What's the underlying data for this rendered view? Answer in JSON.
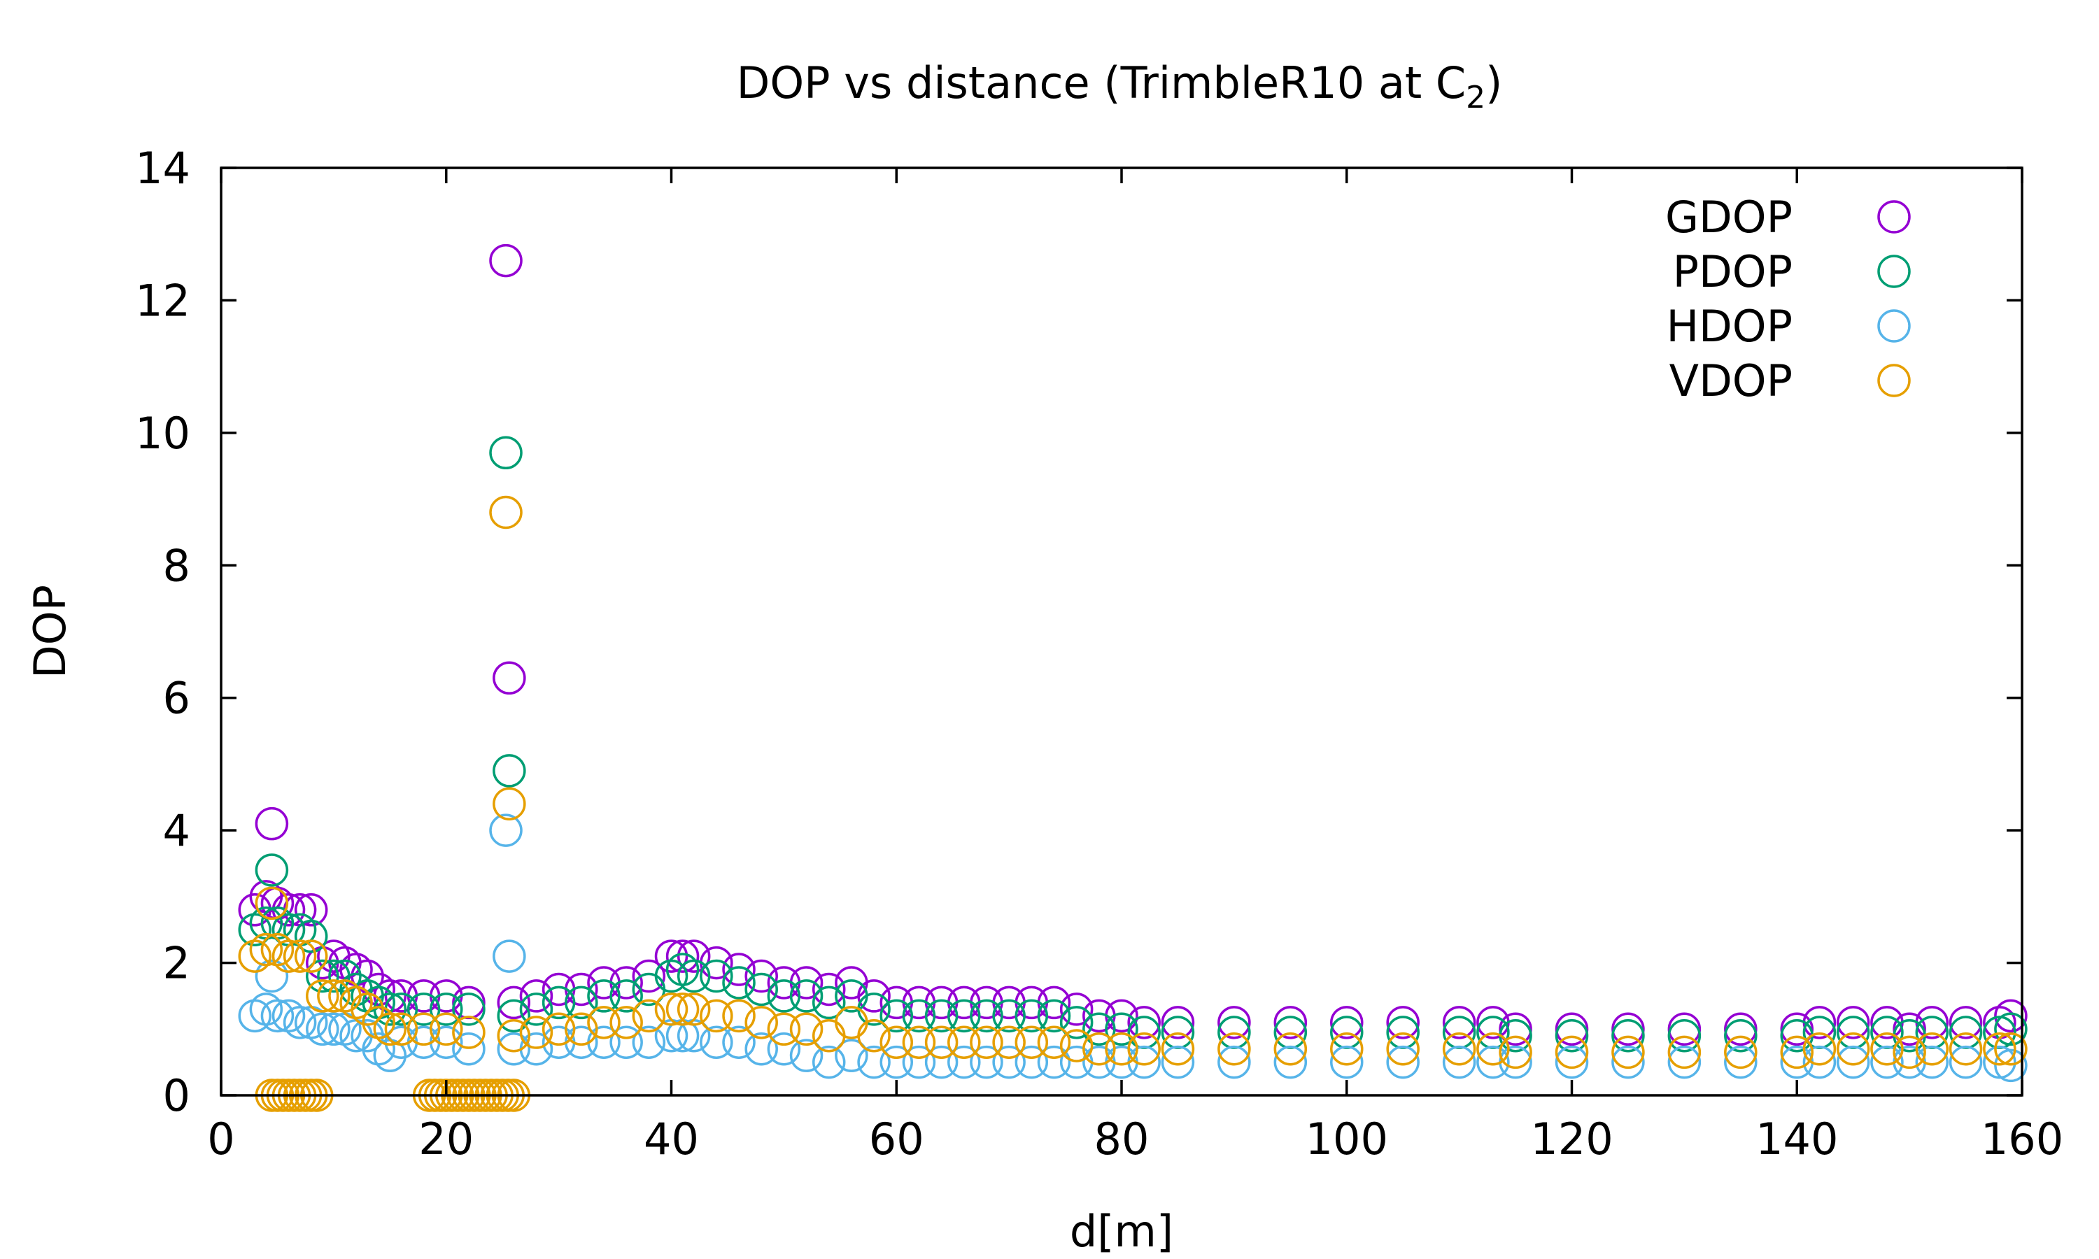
{
  "chart_data": {
    "type": "scatter",
    "title": "DOP vs distance (TrimbleR10 at C",
    "title_subscript": "2",
    "title_suffix": ")",
    "xlabel": "d[m]",
    "ylabel": "DOP",
    "xlim": [
      0,
      160
    ],
    "ylim": [
      0,
      14
    ],
    "xticks": [
      0,
      20,
      40,
      60,
      80,
      100,
      120,
      140,
      160
    ],
    "yticks": [
      0,
      2,
      4,
      6,
      8,
      10,
      12,
      14
    ],
    "grid": false,
    "legend_position": "top-right",
    "marker": "open-circle",
    "series": [
      {
        "name": "GDOP",
        "color": "#9400d3",
        "points": [
          [
            3,
            2.8
          ],
          [
            4,
            3.0
          ],
          [
            4.5,
            4.1
          ],
          [
            5,
            2.9
          ],
          [
            6,
            2.8
          ],
          [
            7,
            2.8
          ],
          [
            8,
            2.8
          ],
          [
            9,
            2.0
          ],
          [
            10,
            2.1
          ],
          [
            11,
            2.0
          ],
          [
            12,
            1.9
          ],
          [
            13,
            1.8
          ],
          [
            14,
            1.6
          ],
          [
            15,
            1.5
          ],
          [
            16,
            1.5
          ],
          [
            18,
            1.5
          ],
          [
            20,
            1.5
          ],
          [
            22,
            1.4
          ],
          [
            25.3,
            12.6
          ],
          [
            25.6,
            6.3
          ],
          [
            26,
            1.4
          ],
          [
            28,
            1.5
          ],
          [
            30,
            1.6
          ],
          [
            32,
            1.6
          ],
          [
            34,
            1.7
          ],
          [
            36,
            1.7
          ],
          [
            38,
            1.8
          ],
          [
            40,
            2.1
          ],
          [
            41,
            2.1
          ],
          [
            42,
            2.1
          ],
          [
            44,
            2.0
          ],
          [
            46,
            1.9
          ],
          [
            48,
            1.8
          ],
          [
            50,
            1.7
          ],
          [
            52,
            1.7
          ],
          [
            54,
            1.6
          ],
          [
            56,
            1.7
          ],
          [
            58,
            1.5
          ],
          [
            60,
            1.4
          ],
          [
            62,
            1.4
          ],
          [
            64,
            1.4
          ],
          [
            66,
            1.4
          ],
          [
            68,
            1.4
          ],
          [
            70,
            1.4
          ],
          [
            72,
            1.4
          ],
          [
            74,
            1.4
          ],
          [
            76,
            1.3
          ],
          [
            78,
            1.2
          ],
          [
            80,
            1.2
          ],
          [
            82,
            1.1
          ],
          [
            85,
            1.1
          ],
          [
            90,
            1.1
          ],
          [
            95,
            1.1
          ],
          [
            100,
            1.1
          ],
          [
            105,
            1.1
          ],
          [
            110,
            1.1
          ],
          [
            113,
            1.1
          ],
          [
            115,
            1.0
          ],
          [
            120,
            1.0
          ],
          [
            125,
            1.0
          ],
          [
            130,
            1.0
          ],
          [
            135,
            1.0
          ],
          [
            140,
            1.0
          ],
          [
            142,
            1.1
          ],
          [
            145,
            1.1
          ],
          [
            148,
            1.1
          ],
          [
            150,
            1.0
          ],
          [
            152,
            1.1
          ],
          [
            155,
            1.1
          ],
          [
            158,
            1.1
          ],
          [
            159,
            1.2
          ]
        ]
      },
      {
        "name": "PDOP",
        "color": "#009e73",
        "points": [
          [
            3,
            2.5
          ],
          [
            4,
            2.6
          ],
          [
            4.5,
            3.4
          ],
          [
            5,
            2.6
          ],
          [
            6,
            2.5
          ],
          [
            7,
            2.5
          ],
          [
            8,
            2.4
          ],
          [
            9,
            1.8
          ],
          [
            10,
            1.8
          ],
          [
            11,
            1.8
          ],
          [
            12,
            1.6
          ],
          [
            13,
            1.5
          ],
          [
            14,
            1.4
          ],
          [
            15,
            1.3
          ],
          [
            16,
            1.3
          ],
          [
            18,
            1.3
          ],
          [
            20,
            1.3
          ],
          [
            22,
            1.3
          ],
          [
            25.3,
            9.7
          ],
          [
            25.6,
            4.9
          ],
          [
            26,
            1.2
          ],
          [
            28,
            1.3
          ],
          [
            30,
            1.4
          ],
          [
            32,
            1.4
          ],
          [
            34,
            1.5
          ],
          [
            36,
            1.5
          ],
          [
            38,
            1.6
          ],
          [
            40,
            1.8
          ],
          [
            41,
            1.9
          ],
          [
            42,
            1.8
          ],
          [
            44,
            1.8
          ],
          [
            46,
            1.7
          ],
          [
            48,
            1.6
          ],
          [
            50,
            1.5
          ],
          [
            52,
            1.5
          ],
          [
            54,
            1.4
          ],
          [
            56,
            1.5
          ],
          [
            58,
            1.3
          ],
          [
            60,
            1.2
          ],
          [
            62,
            1.2
          ],
          [
            64,
            1.2
          ],
          [
            66,
            1.2
          ],
          [
            68,
            1.2
          ],
          [
            70,
            1.2
          ],
          [
            72,
            1.2
          ],
          [
            74,
            1.2
          ],
          [
            76,
            1.1
          ],
          [
            78,
            1.0
          ],
          [
            80,
            1.0
          ],
          [
            82,
            0.95
          ],
          [
            85,
            0.95
          ],
          [
            90,
            0.95
          ],
          [
            95,
            0.95
          ],
          [
            100,
            0.95
          ],
          [
            105,
            0.95
          ],
          [
            110,
            0.95
          ],
          [
            113,
            0.95
          ],
          [
            115,
            0.9
          ],
          [
            120,
            0.9
          ],
          [
            125,
            0.9
          ],
          [
            130,
            0.9
          ],
          [
            135,
            0.9
          ],
          [
            140,
            0.9
          ],
          [
            142,
            0.95
          ],
          [
            145,
            0.95
          ],
          [
            148,
            0.95
          ],
          [
            150,
            0.9
          ],
          [
            152,
            0.95
          ],
          [
            155,
            0.95
          ],
          [
            158,
            0.95
          ],
          [
            159,
            1.0
          ]
        ]
      },
      {
        "name": "HDOP",
        "color": "#56b4e9",
        "points": [
          [
            3,
            1.2
          ],
          [
            4,
            1.3
          ],
          [
            4.5,
            1.8
          ],
          [
            5,
            1.2
          ],
          [
            6,
            1.2
          ],
          [
            7,
            1.1
          ],
          [
            8,
            1.1
          ],
          [
            9,
            1.0
          ],
          [
            10,
            1.0
          ],
          [
            11,
            1.0
          ],
          [
            12,
            0.9
          ],
          [
            13,
            0.9
          ],
          [
            14,
            0.7
          ],
          [
            15,
            0.6
          ],
          [
            16,
            0.8
          ],
          [
            18,
            0.8
          ],
          [
            20,
            0.8
          ],
          [
            22,
            0.7
          ],
          [
            25.3,
            4.0
          ],
          [
            25.6,
            2.1
          ],
          [
            26,
            0.7
          ],
          [
            28,
            0.7
          ],
          [
            30,
            0.8
          ],
          [
            32,
            0.8
          ],
          [
            34,
            0.8
          ],
          [
            36,
            0.8
          ],
          [
            38,
            0.8
          ],
          [
            40,
            0.9
          ],
          [
            41,
            0.9
          ],
          [
            42,
            0.9
          ],
          [
            44,
            0.8
          ],
          [
            46,
            0.8
          ],
          [
            48,
            0.7
          ],
          [
            50,
            0.7
          ],
          [
            52,
            0.6
          ],
          [
            54,
            0.5
          ],
          [
            56,
            0.6
          ],
          [
            58,
            0.5
          ],
          [
            60,
            0.5
          ],
          [
            62,
            0.5
          ],
          [
            64,
            0.5
          ],
          [
            66,
            0.5
          ],
          [
            68,
            0.5
          ],
          [
            70,
            0.5
          ],
          [
            72,
            0.5
          ],
          [
            74,
            0.5
          ],
          [
            76,
            0.5
          ],
          [
            78,
            0.5
          ],
          [
            80,
            0.5
          ],
          [
            82,
            0.5
          ],
          [
            85,
            0.5
          ],
          [
            90,
            0.5
          ],
          [
            95,
            0.5
          ],
          [
            100,
            0.5
          ],
          [
            105,
            0.5
          ],
          [
            110,
            0.5
          ],
          [
            113,
            0.5
          ],
          [
            115,
            0.5
          ],
          [
            120,
            0.5
          ],
          [
            125,
            0.5
          ],
          [
            130,
            0.5
          ],
          [
            135,
            0.5
          ],
          [
            140,
            0.5
          ],
          [
            142,
            0.5
          ],
          [
            145,
            0.5
          ],
          [
            148,
            0.5
          ],
          [
            150,
            0.5
          ],
          [
            152,
            0.5
          ],
          [
            155,
            0.5
          ],
          [
            158,
            0.5
          ],
          [
            159,
            0.45
          ]
        ]
      },
      {
        "name": "VDOP",
        "color": "#e69f00",
        "points": [
          [
            3,
            2.1
          ],
          [
            4,
            2.2
          ],
          [
            4.5,
            2.9
          ],
          [
            5,
            2.2
          ],
          [
            6,
            2.1
          ],
          [
            7,
            2.1
          ],
          [
            8,
            2.1
          ],
          [
            9,
            1.5
          ],
          [
            10,
            1.5
          ],
          [
            11,
            1.5
          ],
          [
            12,
            1.4
          ],
          [
            13,
            1.3
          ],
          [
            14,
            1.1
          ],
          [
            15,
            1.0
          ],
          [
            16,
            1.0
          ],
          [
            18,
            1.0
          ],
          [
            20,
            1.0
          ],
          [
            22,
            0.95
          ],
          [
            25.3,
            8.8
          ],
          [
            25.6,
            4.4
          ],
          [
            26,
            0.9
          ],
          [
            28,
            0.95
          ],
          [
            30,
            1.0
          ],
          [
            32,
            1.0
          ],
          [
            34,
            1.1
          ],
          [
            36,
            1.1
          ],
          [
            38,
            1.2
          ],
          [
            40,
            1.3
          ],
          [
            41,
            1.3
          ],
          [
            42,
            1.3
          ],
          [
            44,
            1.2
          ],
          [
            46,
            1.2
          ],
          [
            48,
            1.1
          ],
          [
            50,
            1.0
          ],
          [
            52,
            1.0
          ],
          [
            54,
            0.9
          ],
          [
            56,
            1.1
          ],
          [
            58,
            0.9
          ],
          [
            60,
            0.8
          ],
          [
            62,
            0.8
          ],
          [
            64,
            0.8
          ],
          [
            66,
            0.8
          ],
          [
            68,
            0.8
          ],
          [
            70,
            0.8
          ],
          [
            72,
            0.8
          ],
          [
            74,
            0.8
          ],
          [
            76,
            0.75
          ],
          [
            78,
            0.7
          ],
          [
            80,
            0.7
          ],
          [
            82,
            0.7
          ],
          [
            85,
            0.7
          ],
          [
            90,
            0.7
          ],
          [
            95,
            0.7
          ],
          [
            100,
            0.7
          ],
          [
            105,
            0.7
          ],
          [
            110,
            0.7
          ],
          [
            113,
            0.7
          ],
          [
            115,
            0.65
          ],
          [
            120,
            0.65
          ],
          [
            125,
            0.65
          ],
          [
            130,
            0.65
          ],
          [
            135,
            0.65
          ],
          [
            140,
            0.65
          ],
          [
            142,
            0.7
          ],
          [
            145,
            0.7
          ],
          [
            148,
            0.7
          ],
          [
            150,
            0.65
          ],
          [
            152,
            0.7
          ],
          [
            155,
            0.7
          ],
          [
            158,
            0.7
          ],
          [
            159,
            0.7
          ],
          [
            4.5,
            0
          ],
          [
            5,
            0
          ],
          [
            5.5,
            0
          ],
          [
            6,
            0
          ],
          [
            6.5,
            0
          ],
          [
            7,
            0
          ],
          [
            7.5,
            0
          ],
          [
            8,
            0
          ],
          [
            8.5,
            0
          ],
          [
            18.5,
            0
          ],
          [
            19,
            0
          ],
          [
            19.5,
            0
          ],
          [
            20,
            0
          ],
          [
            20.5,
            0
          ],
          [
            21,
            0
          ],
          [
            21.5,
            0
          ],
          [
            22,
            0
          ],
          [
            22.5,
            0
          ],
          [
            23,
            0
          ],
          [
            23.5,
            0
          ],
          [
            24,
            0
          ],
          [
            24.5,
            0
          ],
          [
            25,
            0
          ],
          [
            25.5,
            0
          ],
          [
            26,
            0
          ]
        ]
      }
    ]
  }
}
